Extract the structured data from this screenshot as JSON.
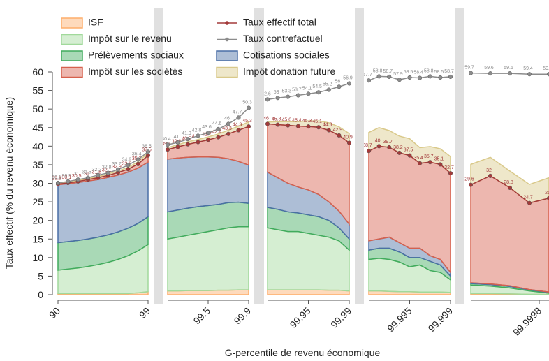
{
  "chart_data": {
    "type": "stacked-area",
    "ylabel": "Taux effectif (% du revenu économique)",
    "xlabel": "G-percentile de revenu économique",
    "ylim": [
      0,
      60
    ],
    "yticks": [
      0,
      5,
      10,
      15,
      20,
      25,
      30,
      35,
      40,
      45,
      50,
      55,
      60
    ],
    "series": [
      {
        "name": "ISF",
        "color": "#fdae6b",
        "type": "area"
      },
      {
        "name": "Impôt sur le revenu",
        "color": "#a1d99b",
        "type": "area"
      },
      {
        "name": "Prélèvements sociaux",
        "color": "#41ab5d",
        "type": "area"
      },
      {
        "name": "Cotisations sociales",
        "color": "#4a6fa5",
        "type": "area"
      },
      {
        "name": "Impôt sur les sociétés",
        "color": "#d6604d",
        "type": "area"
      },
      {
        "name": "Impôt donation future",
        "color": "#d9c98a",
        "type": "area"
      },
      {
        "name": "Taux effectif total",
        "color": "#a33a3a",
        "type": "line"
      },
      {
        "name": "Taux contrefactuel",
        "color": "#8c8c8c",
        "type": "line"
      }
    ],
    "panels": [
      {
        "xlim": [
          90,
          99
        ],
        "xticks": [
          90,
          99
        ],
        "x": [
          90,
          91,
          92,
          93,
          94,
          95,
          96,
          97,
          98,
          99
        ],
        "values": [
          [
            0.3,
            0.3,
            0.3,
            0.3,
            0.3,
            0.3,
            0.3,
            0.3,
            0.5,
            0.8
          ],
          [
            6.3,
            6.6,
            6.9,
            7.3,
            7.8,
            8.4,
            9.2,
            10.2,
            11.3,
            12.7
          ],
          [
            7.4,
            7.4,
            7.4,
            7.4,
            7.4,
            7.4,
            7.4,
            7.4,
            7.4,
            7.5
          ],
          [
            15.6,
            15.6,
            15.6,
            15.6,
            15.5,
            15.5,
            15.3,
            15.1,
            14.9,
            14.7
          ],
          [
            0.2,
            0.2,
            0.3,
            0.4,
            0.5,
            0.5,
            0.7,
            0.8,
            1.1,
            1.8
          ],
          [
            0.2,
            0.2,
            0.3,
            0.3,
            0.3,
            0.4,
            0.4,
            0.5,
            0.6,
            0.7
          ],
          [
            29.8,
            30.1,
            30.5,
            31.0,
            31.5,
            32.1,
            32.9,
            33.8,
            35.2,
            37.5
          ],
          [
            30.1,
            30.5,
            31.0,
            31.5,
            32.2,
            32.8,
            33.7,
            34.9,
            36.4,
            38.5
          ]
        ]
      },
      {
        "xlim": [
          99.1,
          99.9
        ],
        "xticks": [
          99.5,
          99.9
        ],
        "x": [
          99.1,
          99.2,
          99.3,
          99.4,
          99.5,
          99.6,
          99.7,
          99.8,
          99.9
        ],
        "values": [
          [
            1.0,
            1.0,
            1.1,
            1.1,
            1.1,
            1.2,
            1.2,
            1.3,
            1.3
          ],
          [
            14.0,
            14.5,
            14.9,
            15.4,
            15.9,
            16.3,
            16.8,
            17.0,
            17.0
          ],
          [
            7.3,
            7.3,
            7.3,
            7.2,
            7.0,
            6.8,
            6.8,
            6.6,
            6.3
          ],
          [
            14.2,
            14.0,
            13.7,
            13.4,
            13.1,
            12.7,
            11.8,
            11.0,
            10.3
          ],
          [
            2.6,
            3.0,
            3.5,
            4.0,
            4.6,
            5.4,
            6.7,
            8.4,
            10.4
          ],
          [
            0.5,
            0.6,
            0.7,
            0.7,
            0.8,
            0.9,
            1.0,
            1.1,
            1.2
          ],
          [
            39.1,
            39.8,
            40.5,
            41.1,
            41.7,
            42.4,
            43.3,
            44.3,
            45.3
          ],
          [
            40.4,
            41.0,
            41.9,
            42.8,
            43.6,
            44.6,
            46.0,
            47.7,
            50.3
          ]
        ]
      },
      {
        "xlim": [
          99.91,
          99.99
        ],
        "xticks": [
          99.95,
          99.99
        ],
        "x": [
          99.91,
          99.92,
          99.93,
          99.94,
          99.95,
          99.96,
          99.97,
          99.98,
          99.99
        ],
        "values": [
          [
            1.3,
            1.3,
            1.3,
            1.3,
            1.3,
            1.3,
            1.2,
            1.2,
            1.0
          ],
          [
            16.7,
            16.2,
            15.7,
            15.7,
            15.2,
            14.7,
            14.3,
            13.3,
            11.0
          ],
          [
            5.5,
            5.5,
            5.3,
            5.0,
            5.0,
            5.0,
            4.5,
            3.5,
            3.0
          ],
          [
            9.5,
            8.5,
            7.7,
            7.0,
            6.7,
            6.0,
            5.0,
            4.5,
            4.0
          ],
          [
            13.0,
            14.3,
            15.6,
            16.4,
            17.1,
            18.1,
            19.3,
            20.4,
            21.9
          ],
          [
            0.5,
            0.8,
            1.0,
            1.2,
            1.5,
            1.7,
            2.0,
            2.3,
            2.5
          ],
          [
            46.0,
            45.8,
            45.6,
            45.4,
            45.3,
            45.1,
            44.3,
            42.9,
            40.9
          ],
          [
            52.6,
            53.0,
            53.3,
            53.7,
            54.1,
            54.5,
            55.2,
            56.0,
            56.9
          ]
        ]
      },
      {
        "xlim": [
          99.991,
          99.999
        ],
        "xticks": [
          99.995,
          99.999
        ],
        "x": [
          99.991,
          99.992,
          99.993,
          99.994,
          99.995,
          99.996,
          99.997,
          99.998,
          99.999
        ],
        "values": [
          [
            1.0,
            1.0,
            0.9,
            0.8,
            0.8,
            0.7,
            0.7,
            0.7,
            0.6
          ],
          [
            8.5,
            8.8,
            8.6,
            8.0,
            6.7,
            7.3,
            5.8,
            5.3,
            3.4
          ],
          [
            2.5,
            2.7,
            3.0,
            2.7,
            2.5,
            2.0,
            2.5,
            2.0,
            1.0
          ],
          [
            2.5,
            2.5,
            3.0,
            2.5,
            2.5,
            2.5,
            1.5,
            1.5,
            1.0
          ],
          [
            24.2,
            25.0,
            24.2,
            24.2,
            25.0,
            22.9,
            25.2,
            25.6,
            26.7
          ],
          [
            5.0,
            5.0,
            4.5,
            4.5,
            4.5,
            4.2,
            4.2,
            4.2,
            4.5
          ],
          [
            38.7,
            40.0,
            39.7,
            38.2,
            37.5,
            35.4,
            35.7,
            35.1,
            32.7
          ],
          [
            57.7,
            58.8,
            58.7,
            57.9,
            58.5,
            58.4,
            58.8,
            58.5,
            58.7
          ]
        ]
      },
      {
        "xlim": [
          99.9991,
          99.9999
        ],
        "xticks": [
          99.9998
        ],
        "x": [
          99.9991,
          99.9993,
          99.9995,
          99.9997,
          99.9999
        ],
        "values": [
          [
            0.3,
            0.3,
            0.2,
            0.1,
            0.1
          ],
          [
            2.3,
            2.0,
            1.6,
            0.9,
            0.3
          ],
          [
            0.4,
            0.4,
            0.4,
            0.3,
            0.2
          ],
          [
            0.2,
            0.2,
            0.2,
            0.1,
            0.1
          ],
          [
            26.4,
            29.1,
            26.4,
            23.3,
            25.3
          ],
          [
            5.5,
            5.0,
            4.5,
            5.0,
            5.5
          ],
          [
            29.6,
            32.0,
            28.8,
            24.7,
            26.0
          ],
          [
            59.7,
            59.6,
            59.6,
            59.4,
            59.4
          ]
        ]
      }
    ]
  }
}
